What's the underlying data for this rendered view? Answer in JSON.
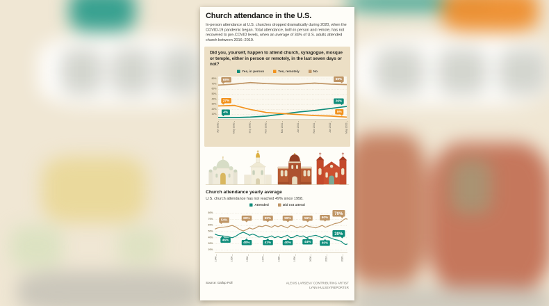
{
  "infographic": {
    "title": "Church attendance in the U.S.",
    "intro": "In-person attendance at U.S. churches dropped dramatically during 2020, when the COVID-19 pandemic began. Total attendance, both in person and remote, has not recovered to pre-COVID levels, when an average of 34% of U.S. adults attended church between 2016–2019.",
    "question": "Did you, yourself, happen to attend church, synagogue, mosque or temple, either in person or remotely, in the last seven days or not?",
    "section2": {
      "title": "Church attendance yearly average",
      "subtitle": "U.S. church attendance has not reached 49% since 1958."
    },
    "source": "Source: Gallup Poll",
    "credit_line1": "ALEXIS LARSEN / CONTRIBUTING ARTIST",
    "credit_line2": "LYNN HULSEY/REPORTER"
  },
  "colors": {
    "green": "#0e8c7a",
    "orange": "#f2921d",
    "tan": "#bf9565",
    "grid": "#cbbfa4",
    "axis": "#b9ab8c",
    "question_box": "#ecdfc5"
  },
  "chart_data": [
    {
      "type": "line",
      "title": "Did you, yourself, happen to attend church, synagogue, mosque or temple, either in person or remotely, in the last seven days or not?",
      "legend_position": "top",
      "grid": true,
      "x": [
        "Apr 2020",
        "May 2020",
        "Sep 2020",
        "Nov 2020",
        "Mar 2021",
        "Jun 2021",
        "Nov 2021",
        "Jun 2022",
        "May 2023"
      ],
      "ylim": [
        0,
        85
      ],
      "yticks": [
        80,
        70,
        60,
        50,
        40,
        30,
        20,
        10
      ],
      "series": [
        {
          "name": "Yes, in person",
          "color_key": "green",
          "values": [
            4,
            4,
            5,
            7,
            11,
            15,
            18,
            22,
            26
          ]
        },
        {
          "name": "Yes, remotely",
          "color_key": "orange",
          "values": [
            27,
            28,
            20,
            14,
            12,
            10,
            8,
            7,
            5
          ]
        },
        {
          "name": "No",
          "color_key": "tan",
          "values": [
            68,
            70,
            73,
            71,
            70,
            70,
            72,
            70,
            69
          ]
        }
      ],
      "callouts": [
        {
          "text": "68%",
          "color_key": "tan",
          "xf": 0.04,
          "v": 68,
          "side": "above"
        },
        {
          "text": "69%",
          "color_key": "tan",
          "xf": 0.96,
          "v": 69,
          "side": "above"
        },
        {
          "text": "27%",
          "color_key": "orange",
          "xf": 0.04,
          "v": 27,
          "side": "above"
        },
        {
          "text": "26%",
          "color_key": "green",
          "xf": 0.96,
          "v": 26,
          "side": "above"
        },
        {
          "text": "4%",
          "color_key": "green",
          "xf": 0.04,
          "v": 4,
          "side": "above"
        },
        {
          "text": "5%",
          "color_key": "orange",
          "xf": 0.96,
          "v": 5,
          "side": "above"
        }
      ]
    },
    {
      "type": "line",
      "title": "Church attendance yearly average",
      "subtitle": "U.S. church attendance has not reached 49% since 1958.",
      "legend_position": "top",
      "grid": true,
      "x_range": [
        1939,
        2023
      ],
      "xticks": [
        1940,
        1950,
        1960,
        1970,
        1980,
        1990,
        2000,
        2010,
        2020
      ],
      "ylim": [
        15,
        85
      ],
      "yticks": [
        80,
        70,
        60,
        50,
        40,
        30,
        20
      ],
      "series": [
        {
          "name": "Attended",
          "color_key": "green",
          "x": [
            1939,
            1941,
            1944,
            1947,
            1950,
            1952,
            1955,
            1957,
            1959,
            1961,
            1963,
            1965,
            1967,
            1969,
            1971,
            1973,
            1975,
            1977,
            1979,
            1981,
            1983,
            1985,
            1987,
            1989,
            1991,
            1993,
            1995,
            1997,
            1999,
            2001,
            2003,
            2005,
            2007,
            2009,
            2011,
            2013,
            2015,
            2017,
            2019,
            2020,
            2021,
            2022,
            2023
          ],
          "values": [
            46,
            44,
            43,
            42,
            40,
            42,
            47,
            49,
            47,
            44,
            46,
            44,
            41,
            42,
            40,
            41,
            43,
            40,
            42,
            40,
            42,
            44,
            40,
            41,
            44,
            42,
            43,
            40,
            42,
            43,
            44,
            42,
            40,
            43,
            41,
            39,
            37,
            36,
            34,
            32,
            30,
            29,
            30
          ]
        },
        {
          "name": "Did not attend",
          "color_key": "tan",
          "x": [
            1939,
            1941,
            1944,
            1947,
            1950,
            1952,
            1955,
            1957,
            1959,
            1961,
            1963,
            1965,
            1967,
            1969,
            1971,
            1973,
            1975,
            1977,
            1979,
            1981,
            1983,
            1985,
            1987,
            1989,
            1991,
            1993,
            1995,
            1997,
            1999,
            2001,
            2003,
            2005,
            2007,
            2009,
            2011,
            2013,
            2015,
            2017,
            2019,
            2020,
            2021,
            2022,
            2023
          ],
          "values": [
            54,
            56,
            57,
            58,
            60,
            58,
            53,
            51,
            53,
            56,
            54,
            56,
            59,
            58,
            60,
            59,
            57,
            60,
            58,
            60,
            58,
            56,
            60,
            59,
            56,
            58,
            57,
            60,
            58,
            57,
            56,
            58,
            60,
            57,
            59,
            61,
            63,
            64,
            66,
            68,
            70,
            71,
            70
          ]
        }
      ],
      "callouts": [
        {
          "text": "54%",
          "color_key": "tan",
          "xf": 0.05,
          "v": 60,
          "side": "above"
        },
        {
          "text": "60%",
          "color_key": "tan",
          "xf": 0.24,
          "v": 63,
          "side": "above"
        },
        {
          "text": "59%",
          "color_key": "tan",
          "xf": 0.4,
          "v": 63,
          "side": "above"
        },
        {
          "text": "59%",
          "color_key": "tan",
          "xf": 0.55,
          "v": 63,
          "side": "above"
        },
        {
          "text": "56%",
          "color_key": "tan",
          "xf": 0.7,
          "v": 63,
          "side": "above"
        },
        {
          "text": "60%",
          "color_key": "tan",
          "xf": 0.83,
          "v": 64,
          "side": "above"
        },
        {
          "text": "70%",
          "color_key": "tan",
          "xf": 0.96,
          "v": 74,
          "side": "above",
          "big": true
        },
        {
          "text": "46%",
          "color_key": "green",
          "xf": 0.06,
          "v": 44,
          "side": "below"
        },
        {
          "text": "40%",
          "color_key": "green",
          "xf": 0.24,
          "v": 40,
          "side": "below"
        },
        {
          "text": "41%",
          "color_key": "green",
          "xf": 0.4,
          "v": 40,
          "side": "below"
        },
        {
          "text": "40%",
          "color_key": "green",
          "xf": 0.55,
          "v": 40,
          "side": "below"
        },
        {
          "text": "44%",
          "color_key": "green",
          "xf": 0.7,
          "v": 41,
          "side": "below"
        },
        {
          "text": "40%",
          "color_key": "green",
          "xf": 0.83,
          "v": 39,
          "side": "below"
        },
        {
          "text": "30%",
          "color_key": "green",
          "xf": 0.96,
          "v": 37,
          "side": "above",
          "big": true
        }
      ]
    }
  ]
}
